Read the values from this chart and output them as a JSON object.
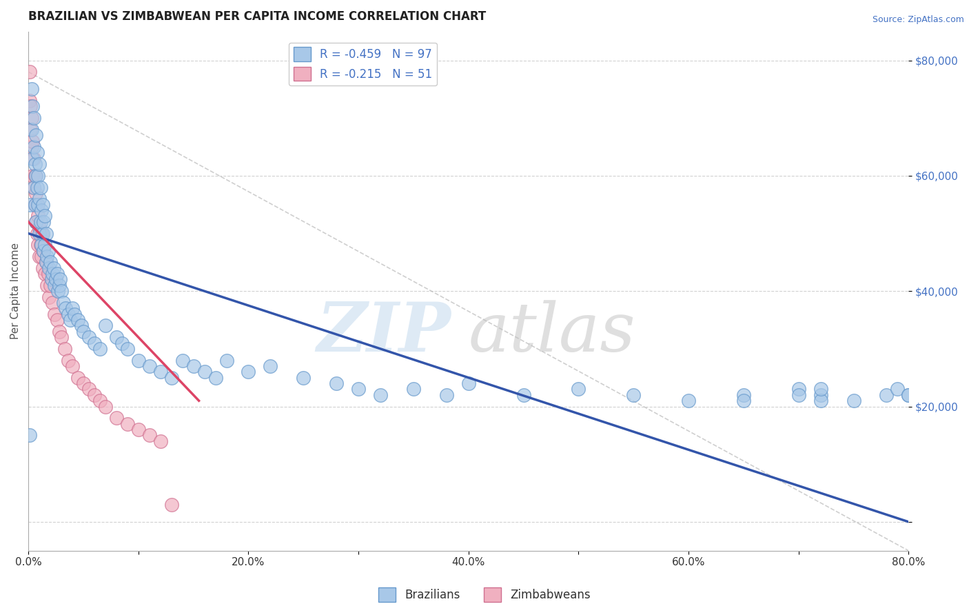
{
  "title": "BRAZILIAN VS ZIMBABWEAN PER CAPITA INCOME CORRELATION CHART",
  "source": "Source: ZipAtlas.com",
  "ylabel": "Per Capita Income",
  "xlim": [
    0.0,
    0.8
  ],
  "ylim": [
    -5000,
    85000
  ],
  "yticks": [
    0,
    20000,
    40000,
    60000,
    80000
  ],
  "ytick_labels": [
    "",
    "$20,000",
    "$40,000",
    "$60,000",
    "$80,000"
  ],
  "xticks": [
    0.0,
    0.1,
    0.2,
    0.3,
    0.4,
    0.5,
    0.6,
    0.7,
    0.8
  ],
  "xtick_labels": [
    "0.0%",
    "",
    "20.0%",
    "",
    "40.0%",
    "",
    "60.0%",
    "",
    "80.0%"
  ],
  "brazil_color": "#A8C8E8",
  "brazil_edge_color": "#6699CC",
  "zimb_color": "#F0B0C0",
  "zimb_edge_color": "#D07090",
  "brazil_line_color": "#3355AA",
  "zimb_line_color": "#DD4466",
  "ref_line_color": "#BBBBBB",
  "legend_brazil_label": "R = -0.459   N = 97",
  "legend_zimb_label": "R = -0.215   N = 51",
  "brazil_intercept": 50000,
  "brazil_slope": -62500,
  "zimb_intercept": 52000,
  "zimb_slope": -200000,
  "brazil_x": [
    0.001,
    0.002,
    0.003,
    0.003,
    0.004,
    0.004,
    0.005,
    0.005,
    0.005,
    0.006,
    0.006,
    0.007,
    0.007,
    0.007,
    0.008,
    0.008,
    0.009,
    0.009,
    0.01,
    0.01,
    0.01,
    0.011,
    0.011,
    0.012,
    0.012,
    0.013,
    0.013,
    0.014,
    0.014,
    0.015,
    0.015,
    0.016,
    0.016,
    0.017,
    0.018,
    0.019,
    0.02,
    0.021,
    0.022,
    0.023,
    0.024,
    0.025,
    0.026,
    0.027,
    0.028,
    0.029,
    0.03,
    0.032,
    0.034,
    0.036,
    0.038,
    0.04,
    0.042,
    0.045,
    0.048,
    0.05,
    0.055,
    0.06,
    0.065,
    0.07,
    0.08,
    0.085,
    0.09,
    0.1,
    0.11,
    0.12,
    0.13,
    0.14,
    0.15,
    0.16,
    0.17,
    0.18,
    0.2,
    0.22,
    0.25,
    0.28,
    0.3,
    0.32,
    0.35,
    0.38,
    0.4,
    0.45,
    0.5,
    0.55,
    0.6,
    0.65,
    0.7,
    0.72,
    0.75,
    0.78,
    0.79,
    0.8,
    0.72,
    0.8,
    0.65,
    0.7,
    0.72
  ],
  "brazil_y": [
    15000,
    55000,
    68000,
    75000,
    72000,
    63000,
    58000,
    65000,
    70000,
    62000,
    55000,
    60000,
    52000,
    67000,
    58000,
    64000,
    55000,
    60000,
    50000,
    56000,
    62000,
    52000,
    58000,
    48000,
    54000,
    50000,
    55000,
    47000,
    52000,
    48000,
    53000,
    45000,
    50000,
    46000,
    47000,
    44000,
    45000,
    42000,
    43000,
    44000,
    41000,
    42000,
    43000,
    40000,
    41000,
    42000,
    40000,
    38000,
    37000,
    36000,
    35000,
    37000,
    36000,
    35000,
    34000,
    33000,
    32000,
    31000,
    30000,
    34000,
    32000,
    31000,
    30000,
    28000,
    27000,
    26000,
    25000,
    28000,
    27000,
    26000,
    25000,
    28000,
    26000,
    27000,
    25000,
    24000,
    23000,
    22000,
    23000,
    22000,
    24000,
    22000,
    23000,
    22000,
    21000,
    22000,
    23000,
    22000,
    21000,
    22000,
    23000,
    22000,
    21000,
    22000,
    21000,
    22000,
    23000
  ],
  "zimb_x": [
    0.001,
    0.001,
    0.002,
    0.002,
    0.003,
    0.003,
    0.004,
    0.004,
    0.005,
    0.005,
    0.006,
    0.006,
    0.007,
    0.007,
    0.008,
    0.008,
    0.009,
    0.009,
    0.01,
    0.01,
    0.011,
    0.012,
    0.012,
    0.013,
    0.014,
    0.015,
    0.016,
    0.017,
    0.018,
    0.019,
    0.02,
    0.022,
    0.024,
    0.026,
    0.028,
    0.03,
    0.033,
    0.036,
    0.04,
    0.045,
    0.05,
    0.055,
    0.06,
    0.065,
    0.07,
    0.08,
    0.09,
    0.1,
    0.11,
    0.12,
    0.13
  ],
  "zimb_y": [
    78000,
    73000,
    68000,
    72000,
    65000,
    70000,
    60000,
    66000,
    58000,
    63000,
    55000,
    60000,
    52000,
    57000,
    50000,
    55000,
    48000,
    53000,
    46000,
    51000,
    48000,
    46000,
    50000,
    44000,
    47000,
    43000,
    45000,
    41000,
    43000,
    39000,
    41000,
    38000,
    36000,
    35000,
    33000,
    32000,
    30000,
    28000,
    27000,
    25000,
    24000,
    23000,
    22000,
    21000,
    20000,
    18000,
    17000,
    16000,
    15000,
    14000,
    3000
  ]
}
